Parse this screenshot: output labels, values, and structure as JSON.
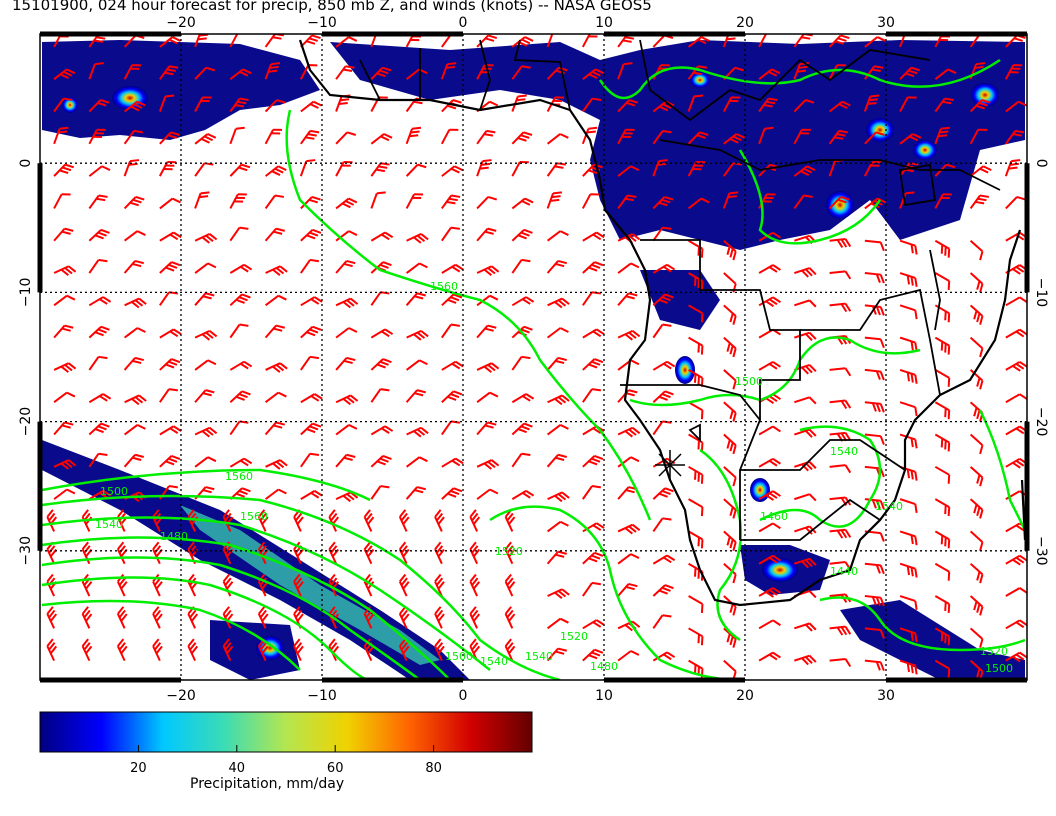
{
  "title": "15101900, 024 hour forecast for precip, 850 mb Z, and winds (knots) -- NASA GEOS5",
  "map": {
    "lon_range": [
      -30,
      40
    ],
    "lat_range": [
      -40,
      10
    ],
    "lon_ticks": [
      -20,
      -10,
      0,
      10,
      20,
      30
    ],
    "lat_ticks": [
      0,
      -10,
      -20,
      -30
    ],
    "grid": "dotted",
    "wind_barb_color": "#ff0000",
    "contour_color": "#00ee00",
    "coastline_color": "#000000"
  },
  "contour_labels": [
    "1560",
    "1560",
    "1500",
    "1540",
    "1520",
    "1500",
    "1540",
    "1540",
    "1480",
    "1500",
    "1540",
    "1460",
    "1440",
    "1540",
    "1520",
    "1500",
    "1560",
    "1480",
    "1520"
  ],
  "colorbar": {
    "title": "Precipitation, mm/day",
    "ticks": [
      "20",
      "40",
      "60",
      "80"
    ],
    "range": [
      0,
      100
    ],
    "colors": [
      "#000080",
      "#0000ff",
      "#00c8ff",
      "#3cdcb4",
      "#b4e650",
      "#f0d200",
      "#ff6400",
      "#d20000",
      "#640000"
    ]
  }
}
